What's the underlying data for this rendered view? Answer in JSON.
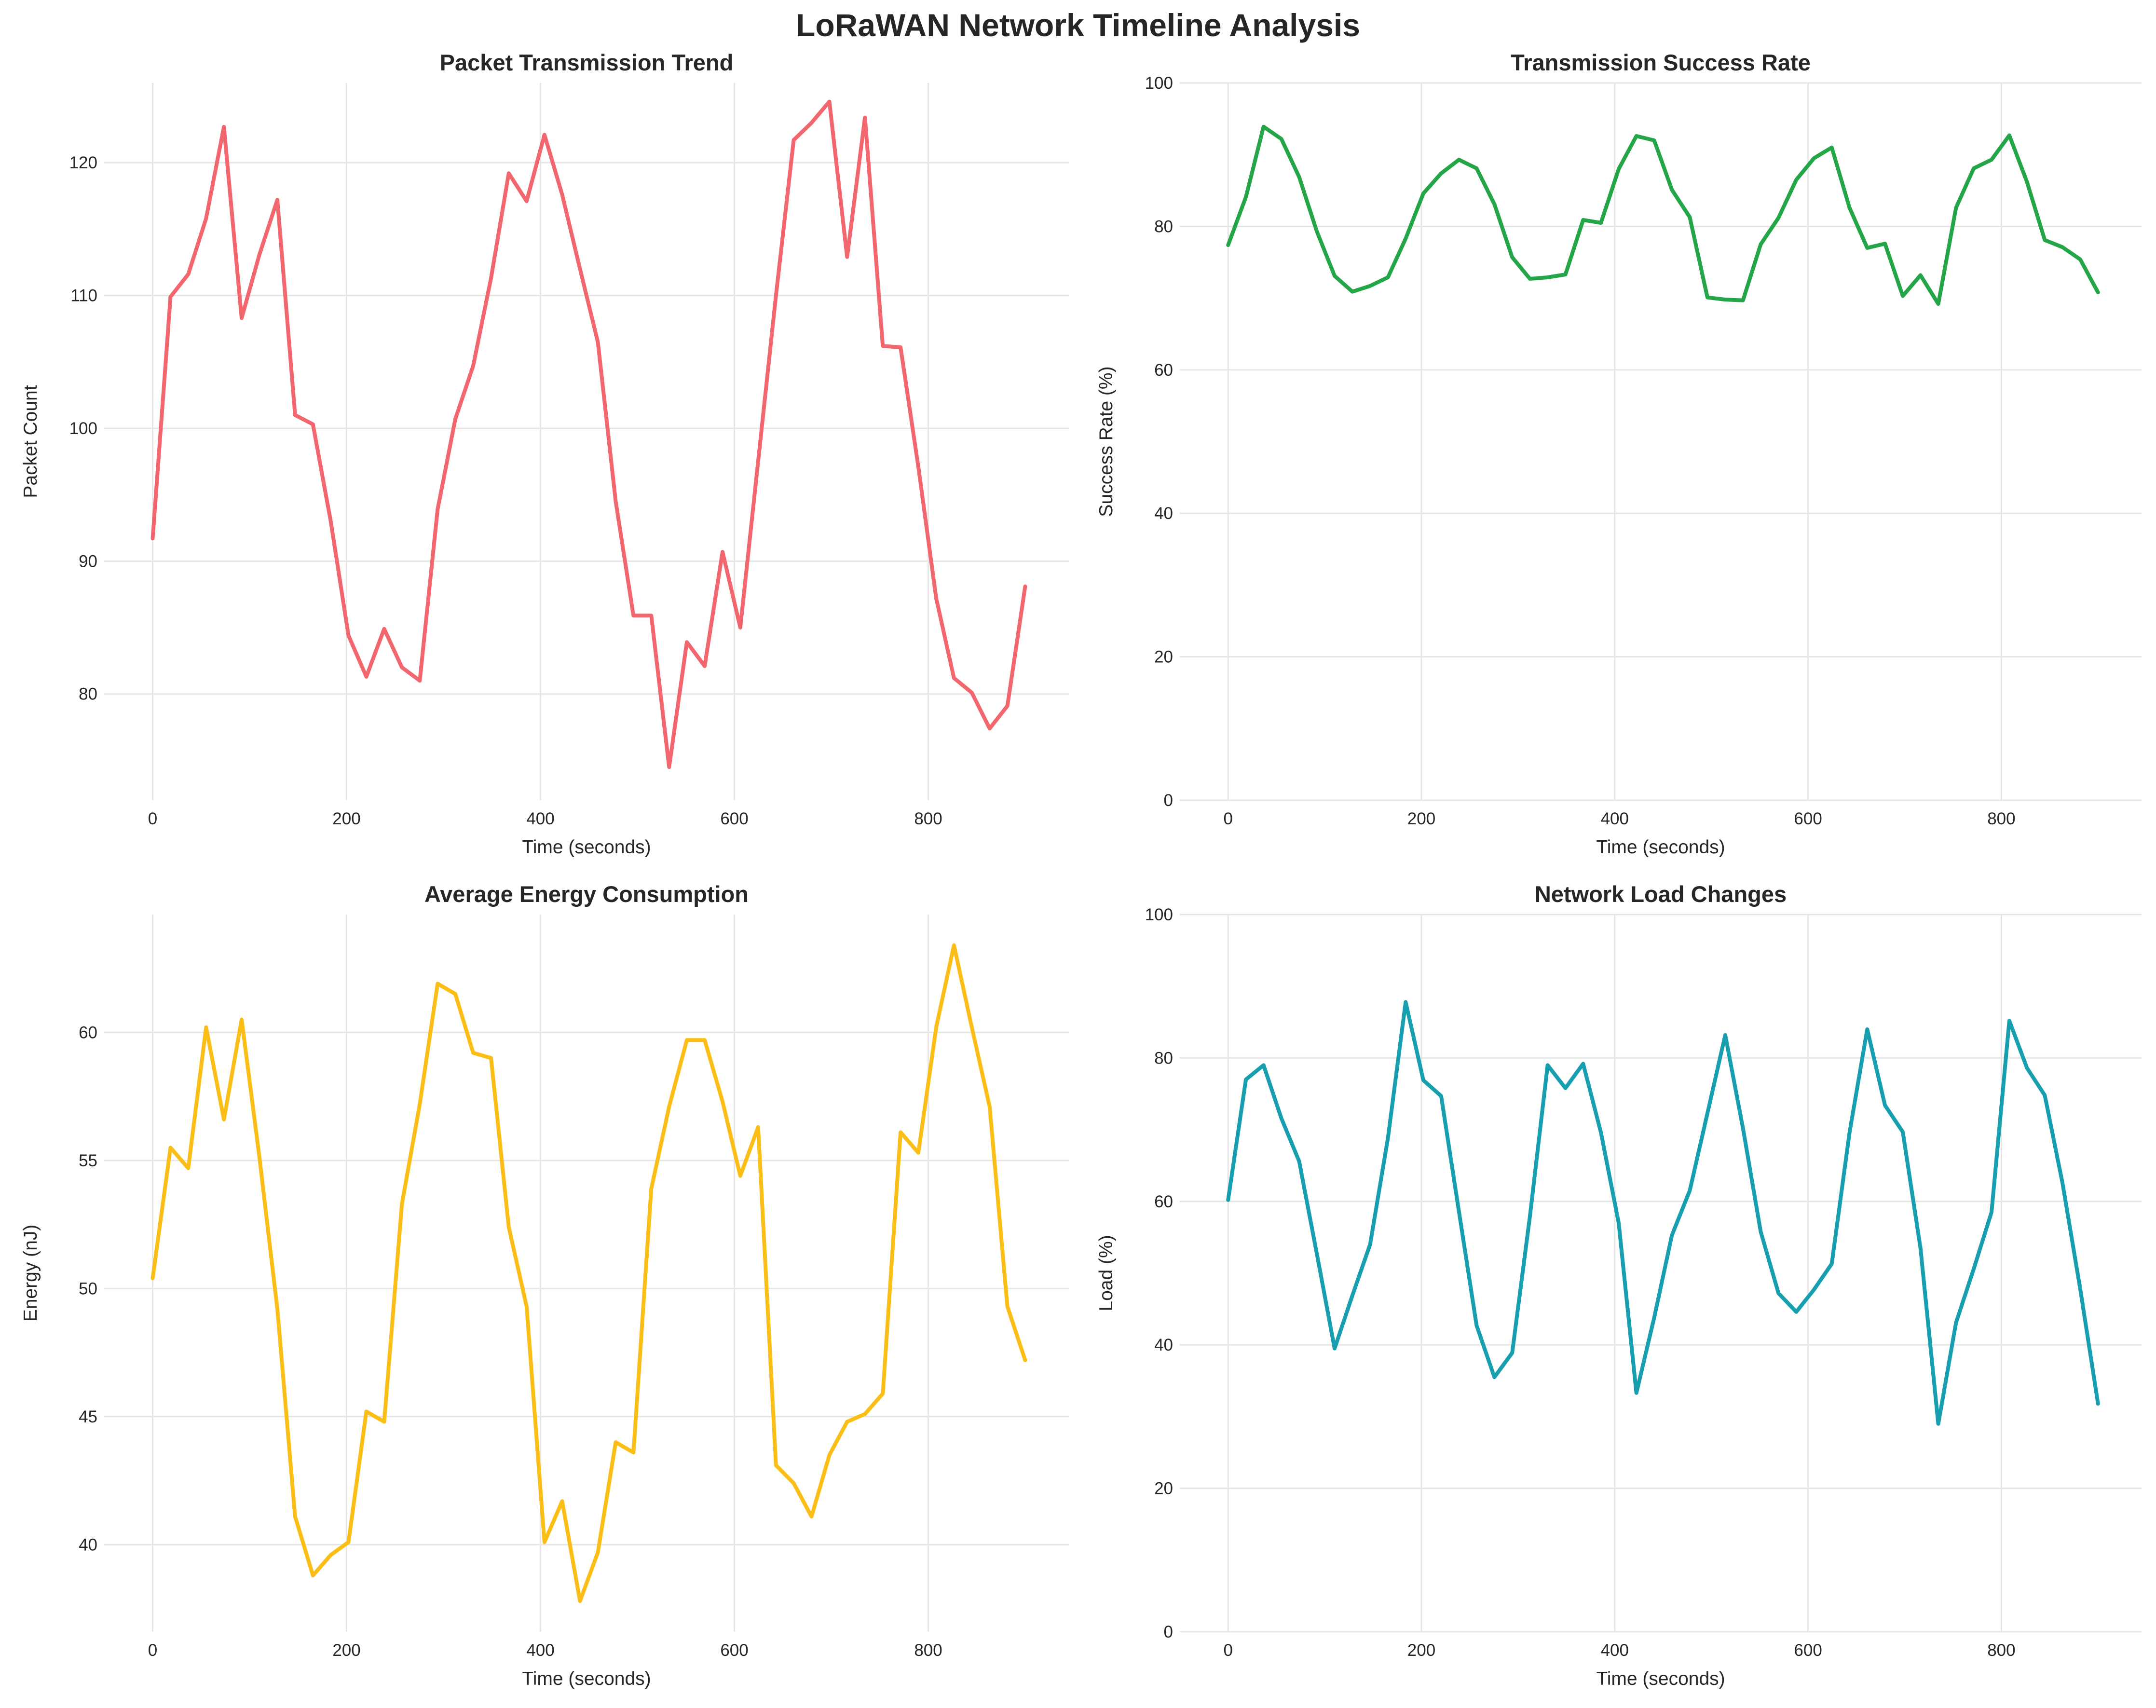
{
  "title": "LoRaWAN Network Timeline Analysis",
  "chart_data": [
    {
      "type": "line",
      "title": "Packet Transmission Trend",
      "xlabel": "Time (seconds)",
      "ylabel": "Packet Count",
      "xlim": [
        -50,
        945
      ],
      "ylim": [
        72,
        126
      ],
      "xticks": [
        0,
        200,
        400,
        600,
        800
      ],
      "yticks": [
        80,
        90,
        100,
        110,
        120
      ],
      "grid": true,
      "color": "#f2666d",
      "x": [
        0,
        18.4,
        36.7,
        55.1,
        73.5,
        91.8,
        110.2,
        128.6,
        146.9,
        165.3,
        183.7,
        202,
        220.4,
        238.8,
        257.1,
        275.5,
        293.9,
        312.2,
        330.6,
        349,
        367.3,
        385.7,
        404.1,
        422.4,
        440.8,
        459.2,
        477.6,
        495.9,
        514.3,
        532.7,
        551,
        569.4,
        587.8,
        606.1,
        624.5,
        642.9,
        661.2,
        679.6,
        698,
        716.3,
        734.7,
        753.1,
        771.4,
        789.8,
        808.2,
        826.5,
        844.9,
        863.3,
        881.6,
        900
      ],
      "y": [
        91.7,
        109.9,
        111.6,
        115.8,
        122.7,
        108.3,
        113.1,
        117.2,
        101,
        100.3,
        93,
        84.4,
        81.3,
        84.9,
        82,
        81,
        93.9,
        100.7,
        104.7,
        111.3,
        119.2,
        117.1,
        122.1,
        117.6,
        112,
        106.5,
        94.5,
        85.9,
        85.9,
        74.5,
        83.9,
        82.1,
        90.7,
        85,
        97.5,
        110,
        121.7,
        123,
        124.6,
        112.9,
        123.4,
        106.2,
        106.1,
        97.1,
        87.2,
        81.2,
        80.1,
        77.4,
        79.1,
        88.1
      ]
    },
    {
      "type": "line",
      "title": "Transmission Success Rate",
      "xlabel": "Time (seconds)",
      "ylabel": "Success Rate (%)",
      "xlim": [
        -50,
        945
      ],
      "ylim": [
        0,
        100
      ],
      "xticks": [
        0,
        200,
        400,
        600,
        800
      ],
      "yticks": [
        0,
        20,
        40,
        60,
        80,
        100
      ],
      "grid": true,
      "color": "#24a547",
      "x": [
        0,
        18.4,
        36.7,
        55.1,
        73.5,
        91.8,
        110.2,
        128.6,
        146.9,
        165.3,
        183.7,
        202,
        220.4,
        238.8,
        257.1,
        275.5,
        293.9,
        312.2,
        330.6,
        349,
        367.3,
        385.7,
        404.1,
        422.4,
        440.8,
        459.2,
        477.6,
        495.9,
        514.3,
        532.7,
        551,
        569.4,
        587.8,
        606.1,
        624.5,
        642.9,
        661.2,
        679.6,
        698,
        716.3,
        734.7,
        753.1,
        771.4,
        789.8,
        808.2,
        826.5,
        844.9,
        863.3,
        881.6,
        900
      ],
      "y": [
        77.4,
        84.1,
        93.9,
        92.2,
        86.9,
        79.3,
        73.1,
        70.9,
        71.7,
        72.9,
        78.3,
        84.6,
        87.4,
        89.3,
        88.1,
        83.1,
        75.7,
        72.7,
        72.9,
        73.3,
        80.9,
        80.5,
        88,
        92.6,
        92,
        85.1,
        81.3,
        70.1,
        69.8,
        69.7,
        77.5,
        81.2,
        86.5,
        89.5,
        91,
        82.6,
        77,
        77.6,
        70.3,
        73.2,
        69.2,
        82.6,
        88.1,
        89.3,
        92.7,
        86.2,
        78.1,
        77.1,
        75.4,
        70.8
      ]
    },
    {
      "type": "line",
      "title": "Average Energy Consumption",
      "xlabel": "Time (seconds)",
      "ylabel": "Energy (nJ)",
      "xlim": [
        -50,
        945
      ],
      "ylim": [
        36.6,
        64.6
      ],
      "xticks": [
        0,
        200,
        400,
        600,
        800
      ],
      "yticks": [
        40,
        45,
        50,
        55,
        60
      ],
      "grid": true,
      "color": "#fbbe17",
      "x": [
        0,
        18.4,
        36.7,
        55.1,
        73.5,
        91.8,
        110.2,
        128.6,
        146.9,
        165.3,
        183.7,
        202,
        220.4,
        238.8,
        257.1,
        275.5,
        293.9,
        312.2,
        330.6,
        349,
        367.3,
        385.7,
        404.1,
        422.4,
        440.8,
        459.2,
        477.6,
        495.9,
        514.3,
        532.7,
        551,
        569.4,
        587.8,
        606.1,
        624.5,
        642.9,
        661.2,
        679.6,
        698,
        716.3,
        734.7,
        753.1,
        771.4,
        789.8,
        808.2,
        826.5,
        844.9,
        863.3,
        881.6,
        900
      ],
      "y": [
        50.4,
        55.5,
        54.7,
        60.2,
        56.6,
        60.5,
        55.1,
        49.2,
        41.1,
        38.8,
        39.6,
        40.1,
        45.2,
        44.8,
        53.3,
        57.2,
        61.9,
        61.5,
        59.2,
        59,
        52.4,
        49.3,
        40.1,
        41.7,
        37.8,
        39.7,
        44,
        43.6,
        53.9,
        57.1,
        59.7,
        59.7,
        57.3,
        54.4,
        56.3,
        43.1,
        42.4,
        41.1,
        43.5,
        44.8,
        45.1,
        45.9,
        56.1,
        55.3,
        60.2,
        63.4,
        60.2,
        57.1,
        49.3,
        47.2
      ]
    },
    {
      "type": "line",
      "title": "Network Load Changes",
      "xlabel": "Time (seconds)",
      "ylabel": "Load (%)",
      "xlim": [
        -50,
        945
      ],
      "ylim": [
        0,
        100
      ],
      "xticks": [
        0,
        200,
        400,
        600,
        800
      ],
      "yticks": [
        0,
        20,
        40,
        60,
        80,
        100
      ],
      "grid": true,
      "color": "#189faf",
      "x": [
        0,
        18.4,
        36.7,
        55.1,
        73.5,
        91.8,
        110.2,
        128.6,
        146.9,
        165.3,
        183.7,
        202,
        220.4,
        238.8,
        257.1,
        275.5,
        293.9,
        312.2,
        330.6,
        349,
        367.3,
        385.7,
        404.1,
        422.4,
        440.8,
        459.2,
        477.6,
        495.9,
        514.3,
        532.7,
        551,
        569.4,
        587.8,
        606.1,
        624.5,
        642.9,
        661.2,
        679.6,
        698,
        716.3,
        734.7,
        753.1,
        771.4,
        789.8,
        808.2,
        826.5,
        844.9,
        863.3,
        881.6,
        900
      ],
      "y": [
        60.2,
        77,
        79,
        71.6,
        65.6,
        52.7,
        39.5,
        46.9,
        54,
        68.8,
        87.8,
        76.9,
        74.7,
        58.6,
        42.7,
        35.5,
        38.9,
        57.9,
        79,
        75.8,
        79.2,
        69.6,
        57,
        33.3,
        43.8,
        55.3,
        61.5,
        72.3,
        83.2,
        70.2,
        55.8,
        47.2,
        44.6,
        47.7,
        51.3,
        69.6,
        84,
        73.4,
        69.7,
        53.5,
        29,
        43.1,
        50.6,
        58.5,
        85.2,
        78.6,
        74.8,
        62.5,
        47.8,
        31.8
      ]
    }
  ]
}
